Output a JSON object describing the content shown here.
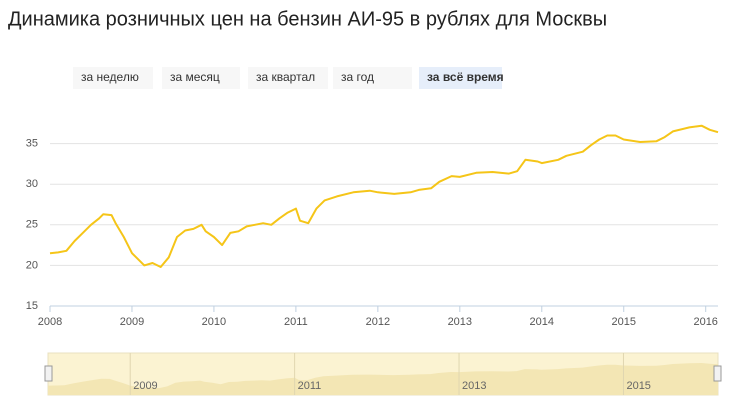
{
  "chart_data": {
    "type": "line",
    "title": "Динамика розничных цен на бензин АИ-95 в рублях для Москвы",
    "range_buttons": [
      "за неделю",
      "за месяц",
      "за квартал",
      "за год",
      "за всё время"
    ],
    "selected_button": 4,
    "color": "#f5c518",
    "grid": true,
    "x": [
      2008.0,
      2008.1,
      2008.2,
      2008.3,
      2008.4,
      2008.5,
      2008.6,
      2008.65,
      2008.75,
      2008.8,
      2008.9,
      2009.0,
      2009.1,
      2009.15,
      2009.25,
      2009.35,
      2009.45,
      2009.55,
      2009.65,
      2009.75,
      2009.85,
      2009.9,
      2010.0,
      2010.1,
      2010.2,
      2010.3,
      2010.4,
      2010.5,
      2010.6,
      2010.7,
      2010.8,
      2010.9,
      2011.0,
      2011.05,
      2011.15,
      2011.25,
      2011.35,
      2011.5,
      2011.7,
      2011.9,
      2012.0,
      2012.2,
      2012.4,
      2012.5,
      2012.65,
      2012.75,
      2012.9,
      2013.0,
      2013.2,
      2013.4,
      2013.6,
      2013.7,
      2013.8,
      2013.95,
      2014.0,
      2014.2,
      2014.3,
      2014.5,
      2014.6,
      2014.7,
      2014.8,
      2014.9,
      2015.0,
      2015.2,
      2015.4,
      2015.5,
      2015.6,
      2015.8,
      2015.95,
      2016.05,
      2016.15
    ],
    "values": [
      21.5,
      21.6,
      21.8,
      23.0,
      24.0,
      25.0,
      25.8,
      26.3,
      26.2,
      25.2,
      23.5,
      21.5,
      20.5,
      20.0,
      20.3,
      19.8,
      21.0,
      23.5,
      24.3,
      24.5,
      25.0,
      24.2,
      23.5,
      22.5,
      24.0,
      24.2,
      24.8,
      25.0,
      25.2,
      25.0,
      25.8,
      26.5,
      27.0,
      25.5,
      25.2,
      27.0,
      28.0,
      28.5,
      29.0,
      29.2,
      29.0,
      28.8,
      29.0,
      29.3,
      29.5,
      30.3,
      31.0,
      30.9,
      31.4,
      31.5,
      31.3,
      31.6,
      33.0,
      32.8,
      32.6,
      33.0,
      33.5,
      34.0,
      34.8,
      35.5,
      36.0,
      36.0,
      35.5,
      35.2,
      35.3,
      35.8,
      36.5,
      37.0,
      37.2,
      36.7,
      36.4
    ],
    "xlim": [
      2008,
      2016.15
    ],
    "xticks": [
      2008,
      2009,
      2010,
      2011,
      2012,
      2013,
      2014,
      2015,
      2016
    ],
    "ylim": [
      15,
      40
    ],
    "yticks": [
      15,
      20,
      25,
      30,
      35
    ],
    "navigator_xticks": [
      2009,
      2011,
      2013,
      2015
    ]
  }
}
